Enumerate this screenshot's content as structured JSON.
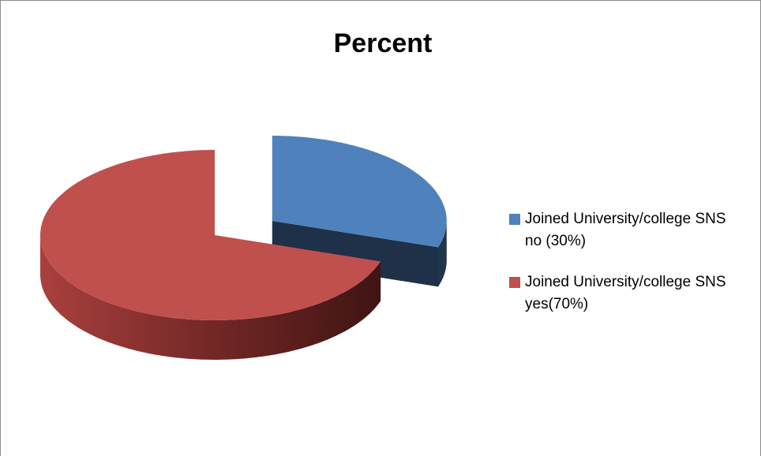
{
  "chart_data": {
    "type": "pie",
    "title": "Percent",
    "categories": [
      "Joined University/college SNS no (30%)",
      "Joined University/college SNS yes(70%)"
    ],
    "values": [
      30,
      70
    ],
    "colors": [
      "#4f81bd",
      "#c0504d"
    ],
    "legend": "right"
  }
}
